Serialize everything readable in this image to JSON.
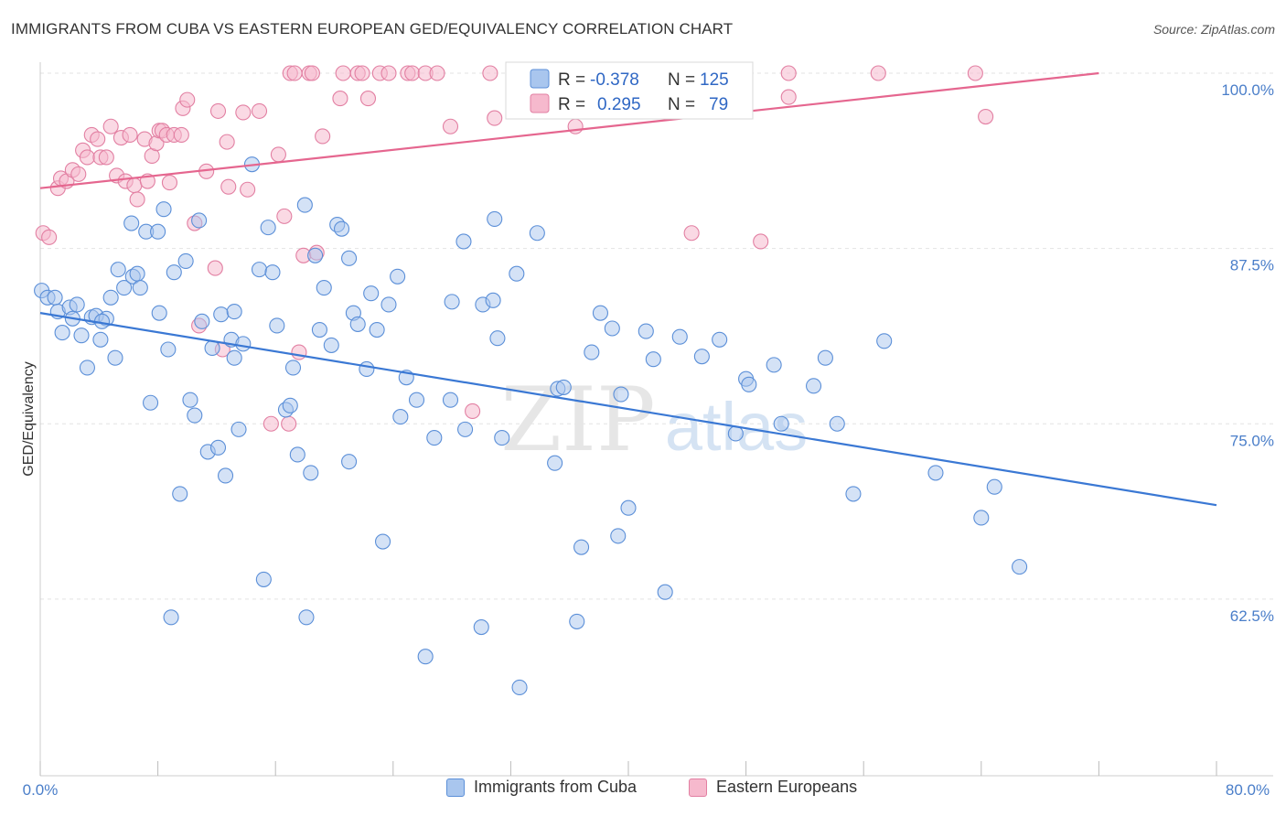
{
  "header": {
    "title": "IMMIGRANTS FROM CUBA VS EASTERN EUROPEAN GED/EQUIVALENCY CORRELATION CHART",
    "source": "Source: ZipAtlas.com"
  },
  "watermark": {
    "zip": "ZIP",
    "atlas": "atlas"
  },
  "legend": {
    "rows": [
      {
        "r_label": "R =",
        "r_value": "-0.378",
        "n_label": "N =",
        "n_value": "125"
      },
      {
        "r_label": "R =",
        "r_value": "0.295",
        "n_label": "N =",
        "n_value": "79"
      }
    ]
  },
  "bottom_legend": {
    "items": [
      {
        "label": "Immigrants from Cuba"
      },
      {
        "label": "Eastern Europeans"
      }
    ]
  },
  "colors": {
    "blue_fill": "#a9c6ee",
    "blue_stroke": "#5b8fd8",
    "blue_line": "#3a78d4",
    "pink_fill": "#f6b9cd",
    "pink_stroke": "#e27fa2",
    "pink_line": "#e5668f",
    "grid": "#e3e3e3",
    "tick_text": "#4a7ec9"
  },
  "chart_data": {
    "type": "scatter",
    "title": "IMMIGRANTS FROM CUBA VS EASTERN EUROPEAN GED/EQUIVALENCY CORRELATION CHART",
    "xlabel": "",
    "ylabel": "GED/Equivalency",
    "xlim": [
      0,
      80
    ],
    "ylim": [
      50,
      103
    ],
    "x_tick_labels": [
      "0.0%",
      "80.0%"
    ],
    "y_ticks": [
      62.5,
      75.0,
      87.5,
      100.0
    ],
    "y_tick_labels": [
      "62.5%",
      "75.0%",
      "87.5%",
      "100.0%"
    ],
    "grid": true,
    "legend_position": "top-center",
    "series": [
      {
        "name": "Immigrants from Cuba",
        "color": "#5b8fd8",
        "r": -0.378,
        "n": 125,
        "trend": [
          [
            0,
            82.9
          ],
          [
            80,
            69.2
          ]
        ],
        "points": [
          [
            0.1,
            84.5
          ],
          [
            0.5,
            84
          ],
          [
            1.0,
            84
          ],
          [
            1.2,
            83
          ],
          [
            1.5,
            81.5
          ],
          [
            2.0,
            83.3
          ],
          [
            2.2,
            82.5
          ],
          [
            2.5,
            83.5
          ],
          [
            2.8,
            81.3
          ],
          [
            3.2,
            79
          ],
          [
            3.5,
            82.6
          ],
          [
            3.8,
            82.7
          ],
          [
            4.1,
            81
          ],
          [
            4.5,
            82.5
          ],
          [
            4.8,
            84
          ],
          [
            5.1,
            79.7
          ],
          [
            5.3,
            86
          ],
          [
            5.7,
            84.7
          ],
          [
            6.2,
            89.3
          ],
          [
            6.3,
            85.5
          ],
          [
            6.6,
            85.7
          ],
          [
            6.8,
            84.7
          ],
          [
            7.2,
            88.7
          ],
          [
            7.5,
            76.5
          ],
          [
            8.0,
            88.7
          ],
          [
            8.1,
            82.9
          ],
          [
            8.4,
            90.3
          ],
          [
            8.7,
            80.3
          ],
          [
            8.9,
            61.2
          ],
          [
            9.1,
            85.8
          ],
          [
            9.5,
            70
          ],
          [
            9.9,
            86.6
          ],
          [
            10.2,
            76.7
          ],
          [
            10.5,
            75.6
          ],
          [
            10.8,
            89.5
          ],
          [
            11.0,
            82.3
          ],
          [
            11.4,
            73
          ],
          [
            11.7,
            80.4
          ],
          [
            12.1,
            73.3
          ],
          [
            12.3,
            82.8
          ],
          [
            12.6,
            71.3
          ],
          [
            13.0,
            81
          ],
          [
            13.2,
            79.7
          ],
          [
            13.5,
            74.6
          ],
          [
            13.8,
            80.7
          ],
          [
            14.4,
            93.5
          ],
          [
            14.9,
            86
          ],
          [
            15.2,
            63.9
          ],
          [
            15.5,
            89
          ],
          [
            15.8,
            85.8
          ],
          [
            16.1,
            82
          ],
          [
            16.7,
            76
          ],
          [
            17.0,
            76.3
          ],
          [
            17.2,
            79
          ],
          [
            17.5,
            72.8
          ],
          [
            18.0,
            90.6
          ],
          [
            18.1,
            61.2
          ],
          [
            18.4,
            71.5
          ],
          [
            18.7,
            87
          ],
          [
            19.0,
            81.7
          ],
          [
            19.3,
            84.7
          ],
          [
            19.8,
            80.6
          ],
          [
            20.2,
            89.2
          ],
          [
            20.5,
            88.9
          ],
          [
            21.0,
            72.3
          ],
          [
            21.3,
            82.9
          ],
          [
            21.6,
            82.1
          ],
          [
            22.2,
            78.9
          ],
          [
            22.5,
            84.3
          ],
          [
            22.9,
            81.7
          ],
          [
            23.3,
            66.6
          ],
          [
            23.7,
            83.5
          ],
          [
            24.3,
            85.5
          ],
          [
            24.5,
            75.5
          ],
          [
            24.9,
            78.3
          ],
          [
            25.6,
            76.7
          ],
          [
            26.2,
            58.4
          ],
          [
            26.8,
            74
          ],
          [
            27.9,
            76.7
          ],
          [
            28.0,
            83.7
          ],
          [
            28.8,
            88
          ],
          [
            28.9,
            74.6
          ],
          [
            30.0,
            60.5
          ],
          [
            30.1,
            83.5
          ],
          [
            30.8,
            83.8
          ],
          [
            30.9,
            89.6
          ],
          [
            31.1,
            81.1
          ],
          [
            31.4,
            74
          ],
          [
            32.4,
            85.7
          ],
          [
            32.6,
            56.2
          ],
          [
            33.8,
            88.6
          ],
          [
            35.0,
            72.2
          ],
          [
            35.2,
            77.5
          ],
          [
            35.6,
            77.6
          ],
          [
            36.5,
            60.9
          ],
          [
            36.8,
            66.2
          ],
          [
            37.5,
            80.1
          ],
          [
            38.1,
            82.9
          ],
          [
            38.9,
            81.8
          ],
          [
            39.3,
            67
          ],
          [
            39.5,
            77.1
          ],
          [
            40.0,
            69
          ],
          [
            41.2,
            81.6
          ],
          [
            41.7,
            79.6
          ],
          [
            42.5,
            63
          ],
          [
            43.5,
            81.2
          ],
          [
            45.0,
            79.8
          ],
          [
            46.2,
            81
          ],
          [
            47.3,
            74.3
          ],
          [
            48.0,
            78.2
          ],
          [
            48.2,
            77.8
          ],
          [
            49.9,
            79.2
          ],
          [
            50.4,
            75
          ],
          [
            52.6,
            77.7
          ],
          [
            53.4,
            79.7
          ],
          [
            54.2,
            75
          ],
          [
            55.3,
            70
          ],
          [
            57.4,
            80.9
          ],
          [
            60.9,
            71.5
          ],
          [
            64.0,
            68.3
          ],
          [
            64.9,
            70.5
          ],
          [
            66.6,
            64.8
          ],
          [
            4.2,
            82.3
          ],
          [
            21.0,
            86.8
          ],
          [
            13.2,
            83
          ]
        ]
      },
      {
        "name": "Eastern Europeans",
        "color": "#e27fa2",
        "r": 0.295,
        "n": 79,
        "trend": [
          [
            0,
            91.8
          ],
          [
            72,
            100
          ]
        ],
        "points": [
          [
            0.2,
            88.6
          ],
          [
            0.6,
            88.3
          ],
          [
            1.2,
            91.8
          ],
          [
            1.4,
            92.5
          ],
          [
            1.8,
            92.3
          ],
          [
            2.2,
            93.1
          ],
          [
            2.6,
            92.8
          ],
          [
            2.9,
            94.5
          ],
          [
            3.2,
            94
          ],
          [
            3.5,
            95.6
          ],
          [
            3.9,
            95.3
          ],
          [
            4.1,
            94
          ],
          [
            4.5,
            94
          ],
          [
            4.8,
            96.2
          ],
          [
            5.2,
            92.7
          ],
          [
            5.5,
            95.4
          ],
          [
            5.8,
            92.3
          ],
          [
            6.1,
            95.6
          ],
          [
            6.4,
            92
          ],
          [
            6.6,
            91
          ],
          [
            7.1,
            95.3
          ],
          [
            7.3,
            92.3
          ],
          [
            7.6,
            94.1
          ],
          [
            7.9,
            95
          ],
          [
            8.1,
            95.9
          ],
          [
            8.3,
            95.9
          ],
          [
            8.6,
            95.6
          ],
          [
            8.8,
            92.2
          ],
          [
            9.1,
            95.6
          ],
          [
            9.6,
            95.6
          ],
          [
            9.7,
            97.5
          ],
          [
            10.0,
            98.1
          ],
          [
            10.5,
            89.3
          ],
          [
            10.8,
            82
          ],
          [
            11.3,
            93
          ],
          [
            11.9,
            86.1
          ],
          [
            12.1,
            97.3
          ],
          [
            12.4,
            80.3
          ],
          [
            12.7,
            95.1
          ],
          [
            12.8,
            91.9
          ],
          [
            13.8,
            97.2
          ],
          [
            14.1,
            91.7
          ],
          [
            14.9,
            97.3
          ],
          [
            15.7,
            75
          ],
          [
            16.2,
            94.2
          ],
          [
            16.6,
            89.8
          ],
          [
            16.9,
            75
          ],
          [
            17.0,
            100
          ],
          [
            17.3,
            100
          ],
          [
            17.6,
            80.1
          ],
          [
            17.9,
            87
          ],
          [
            18.3,
            100
          ],
          [
            18.5,
            100
          ],
          [
            18.8,
            87.2
          ],
          [
            19.2,
            95.5
          ],
          [
            20.4,
            98.2
          ],
          [
            20.6,
            100
          ],
          [
            21.6,
            100
          ],
          [
            21.9,
            100
          ],
          [
            22.3,
            98.2
          ],
          [
            23.1,
            100
          ],
          [
            23.7,
            100
          ],
          [
            25.0,
            100
          ],
          [
            25.3,
            100
          ],
          [
            26.2,
            100
          ],
          [
            27.0,
            100
          ],
          [
            27.9,
            96.2
          ],
          [
            29.4,
            75.9
          ],
          [
            30.6,
            100
          ],
          [
            30.9,
            96.8
          ],
          [
            36.4,
            96.2
          ],
          [
            44.3,
            88.6
          ],
          [
            47.2,
            100
          ],
          [
            49.0,
            88
          ],
          [
            50.9,
            100
          ],
          [
            50.9,
            98.3
          ],
          [
            57.0,
            100
          ],
          [
            63.6,
            100
          ],
          [
            64.3,
            96.9
          ]
        ]
      }
    ]
  }
}
